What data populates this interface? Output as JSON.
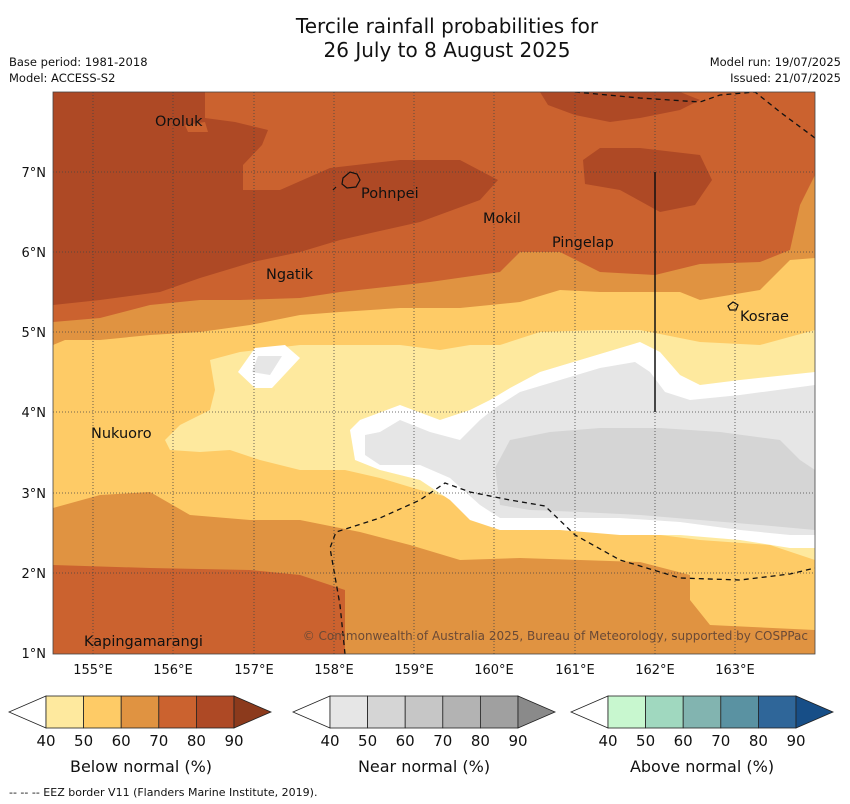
{
  "title": {
    "line1": "Tercile rainfall probabilities for",
    "line2": "26 July to 8 August 2025"
  },
  "info": {
    "base_period": "Base period: 1981-2018",
    "model": "Model: ACCESS-S2",
    "model_run": "Model run: 19/07/2025",
    "issued": "Issued: 21/07/2025"
  },
  "map": {
    "lon_ticks": [
      "155°E",
      "156°E",
      "157°E",
      "158°E",
      "159°E",
      "160°E",
      "161°E",
      "162°E",
      "163°E"
    ],
    "lat_ticks": [
      "7°N",
      "6°N",
      "5°N",
      "4°N",
      "3°N",
      "2°N",
      "1°N"
    ],
    "places": {
      "oroluk": "Oroluk",
      "pohnpei": "Pohnpei",
      "mokil": "Mokil",
      "pingelap": "Pingelap",
      "ngatik": "Ngatik",
      "kosrae": "Kosrae",
      "nukuoro": "Nukuoro",
      "kapingamarangi": "Kapingamarangi"
    },
    "credit": "© Commonwealth of Australia 2025, Bureau of Meteorology, supported by COSPPac",
    "colors": {
      "below_40": "#ffffff",
      "below_50": "#fee99e",
      "below_60": "#fecb66",
      "below_70": "#e09341",
      "below_80": "#cb622f",
      "below_90": "#ae4925",
      "below_max": "#8c3a1c",
      "near_50": "#e6e6e6",
      "near_60": "#d5d5d5"
    }
  },
  "colorbars": {
    "ticks": [
      "40",
      "50",
      "60",
      "70",
      "80",
      "90"
    ],
    "below": {
      "label": "Below normal (%)",
      "colors": [
        "#ffffff",
        "#fee99e",
        "#fecb66",
        "#e09341",
        "#cb622f",
        "#ae4925",
        "#8c3a1c"
      ]
    },
    "near": {
      "label": "Near normal (%)",
      "colors": [
        "#ffffff",
        "#e6e6e6",
        "#d5d5d5",
        "#c6c6c6",
        "#b3b3b3",
        "#a0a0a0",
        "#8a8a8a"
      ]
    },
    "above": {
      "label": "Above normal (%)",
      "colors": [
        "#ffffff",
        "#c8f7cf",
        "#a0d8bf",
        "#82b4b0",
        "#5a92a2",
        "#2f6699",
        "#174e87"
      ]
    }
  },
  "footnote": "--  --  -- EEZ border V11 (Flanders Marine Institute, 2019)."
}
